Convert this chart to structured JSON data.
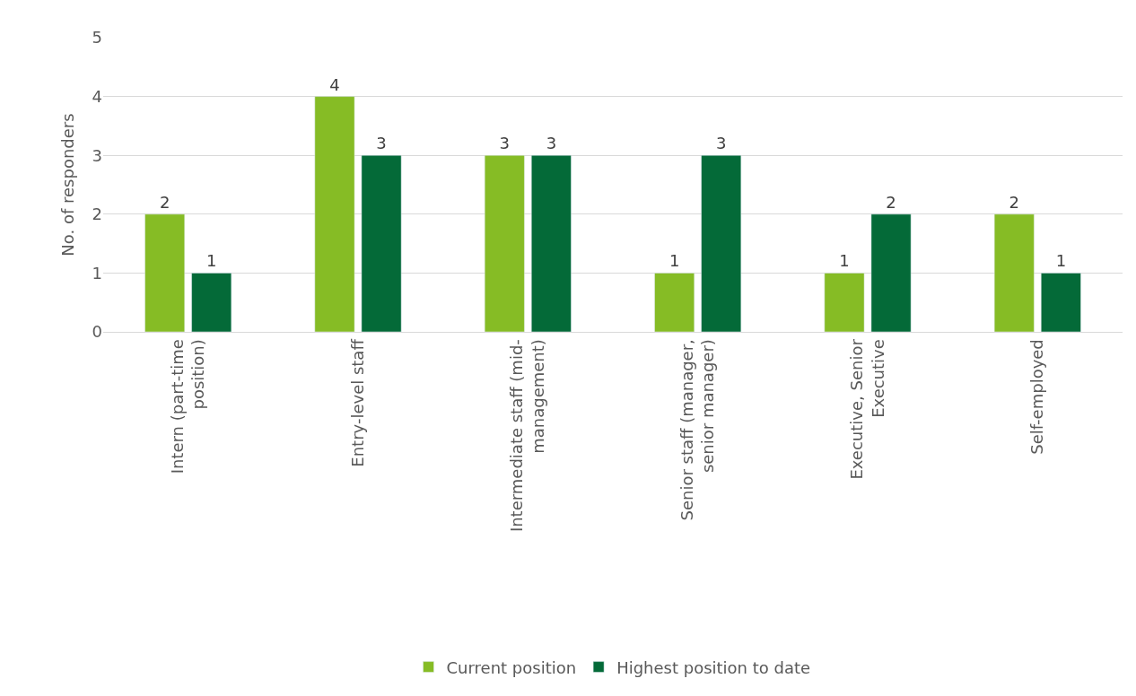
{
  "chart_data": {
    "type": "bar",
    "ylabel": "No. of responders",
    "categories": [
      "Intern (part-time position)",
      "Entry-level staff",
      "Intermediate staff (mid-management)",
      "Senior staff (manager, senior manager)",
      "Executive, Senior Executive",
      "Self-employed"
    ],
    "series": [
      {
        "name": "Current position",
        "color": "#86bc25",
        "values": [
          2,
          4,
          3,
          1,
          1,
          2
        ]
      },
      {
        "name": "Highest position to date",
        "color": "#046a38",
        "values": [
          1,
          3,
          3,
          3,
          2,
          1
        ]
      }
    ],
    "ylim": [
      0,
      5
    ],
    "yticks": [
      0,
      1,
      2,
      3,
      4,
      5
    ],
    "grid": "y",
    "legend": "bottom",
    "data_labels": true
  }
}
